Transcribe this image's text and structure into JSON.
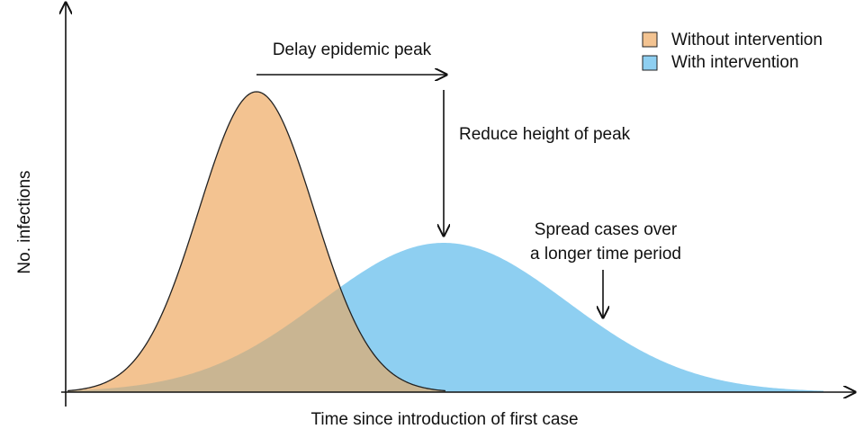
{
  "axes": {
    "y_label": "No. infections",
    "x_label": "Time since introduction of first case"
  },
  "legend": [
    "Without intervention",
    "With intervention"
  ],
  "annotations": {
    "delay": "Delay epidemic peak",
    "reduce": "Reduce height of peak",
    "spread": [
      "Spread cases over",
      "a longer time period"
    ]
  }
}
